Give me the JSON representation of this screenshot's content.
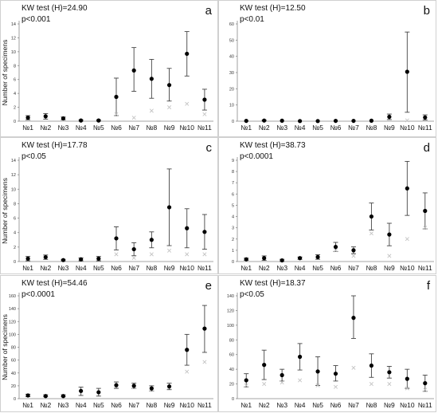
{
  "chart_data": [
    {
      "type": "scatter",
      "panel_label": "a",
      "stat_text": "KW test (H)=24.90",
      "p_text": "p<0.001",
      "ylabel": "Number of specimens",
      "ylim": [
        0,
        14
      ],
      "yticks": [
        0,
        2,
        4,
        6,
        8,
        10,
        12,
        14
      ],
      "categories": [
        "№1",
        "№2",
        "№3",
        "№4",
        "№5",
        "№6",
        "№7",
        "№8",
        "№9",
        "№10",
        "№11"
      ],
      "mean": [
        0.5,
        0.7,
        0.4,
        0.1,
        0.1,
        3.5,
        7.3,
        6.1,
        5.2,
        9.7,
        3.1
      ],
      "err_low": [
        0.2,
        0.3,
        0.2,
        0.0,
        0.0,
        0.8,
        4.3,
        3.3,
        2.9,
        6.5,
        1.6
      ],
      "err_high": [
        0.8,
        1.1,
        0.6,
        0.2,
        0.2,
        6.2,
        10.6,
        8.9,
        7.6,
        12.9,
        4.6
      ],
      "median": [
        null,
        null,
        null,
        null,
        null,
        1.0,
        0.5,
        1.5,
        2.0,
        2.5,
        1.0
      ]
    },
    {
      "type": "scatter",
      "panel_label": "b",
      "stat_text": "KW test (H)=12.50",
      "p_text": "p<0.01",
      "ylabel": "",
      "ylim": [
        0,
        60
      ],
      "yticks": [
        0,
        10,
        20,
        30,
        40,
        50,
        60
      ],
      "categories": [
        "№1",
        "№2",
        "№3",
        "№4",
        "№5",
        "№6",
        "№7",
        "№8",
        "№9",
        "№10",
        "№11"
      ],
      "mean": [
        0.2,
        0.4,
        0.3,
        0.1,
        0.1,
        0.2,
        0.2,
        0.3,
        2.7,
        30.5,
        2.3
      ],
      "err_low": [
        0.0,
        0.1,
        0.1,
        0.0,
        0.0,
        0.0,
        0.0,
        0.1,
        1.0,
        5.5,
        0.7
      ],
      "err_high": [
        0.4,
        0.7,
        0.5,
        0.2,
        0.2,
        0.4,
        0.4,
        0.5,
        4.4,
        55.0,
        3.9
      ],
      "median": [
        null,
        null,
        null,
        null,
        null,
        null,
        null,
        null,
        null,
        0.5,
        null
      ]
    },
    {
      "type": "scatter",
      "panel_label": "c",
      "stat_text": "KW test (H)=17.78",
      "p_text": "p<0.05",
      "ylabel": "Number of specimens",
      "ylim": [
        0,
        14
      ],
      "yticks": [
        0,
        2,
        4,
        6,
        8,
        10,
        12,
        14
      ],
      "categories": [
        "№1",
        "№2",
        "№3",
        "№4",
        "№5",
        "№6",
        "№7",
        "№8",
        "№9",
        "№10",
        "№11"
      ],
      "mean": [
        0.4,
        0.6,
        0.2,
        0.3,
        0.4,
        3.2,
        1.7,
        3.0,
        7.5,
        4.6,
        4.1
      ],
      "err_low": [
        0.1,
        0.3,
        0.1,
        0.1,
        0.1,
        1.6,
        0.8,
        1.9,
        2.2,
        1.9,
        1.7
      ],
      "err_high": [
        0.7,
        0.9,
        0.3,
        0.5,
        0.7,
        4.8,
        2.6,
        4.1,
        12.8,
        7.3,
        6.5
      ],
      "median": [
        null,
        null,
        null,
        null,
        null,
        1.0,
        0.5,
        1.0,
        1.5,
        1.0,
        1.0
      ]
    },
    {
      "type": "scatter",
      "panel_label": "d",
      "stat_text": "KW test (H)=38.73",
      "p_text": "p<0.0001",
      "ylabel": "",
      "ylim": [
        0,
        9
      ],
      "yticks": [
        0,
        1,
        2,
        3,
        4,
        5,
        6,
        7,
        8,
        9
      ],
      "categories": [
        "№1",
        "№2",
        "№3",
        "№4",
        "№5",
        "№6",
        "№7",
        "№8",
        "№9",
        "№10",
        "№11"
      ],
      "mean": [
        0.2,
        0.3,
        0.1,
        0.3,
        0.4,
        1.3,
        1.0,
        4.0,
        2.4,
        6.5,
        4.5
      ],
      "err_low": [
        0.1,
        0.1,
        0.0,
        0.2,
        0.2,
        0.9,
        0.7,
        2.8,
        1.4,
        4.1,
        2.9
      ],
      "err_high": [
        0.3,
        0.5,
        0.2,
        0.4,
        0.6,
        1.7,
        1.3,
        5.2,
        3.4,
        8.9,
        6.1
      ],
      "median": [
        null,
        null,
        null,
        null,
        null,
        1.0,
        0.5,
        2.5,
        0.5,
        2.0,
        3.0
      ]
    },
    {
      "type": "scatter",
      "panel_label": "e",
      "stat_text": "KW test (H)=54.46",
      "p_text": "p<0.0001",
      "ylabel": "Number of specimens",
      "ylim": [
        0,
        160
      ],
      "yticks": [
        0,
        20,
        40,
        60,
        80,
        100,
        120,
        140,
        160
      ],
      "categories": [
        "№1",
        "№2",
        "№3",
        "№4",
        "№5",
        "№6",
        "№7",
        "№8",
        "№9",
        "№10",
        "№11"
      ],
      "mean": [
        5,
        4,
        4,
        12,
        10,
        21,
        20,
        16,
        19,
        76,
        109
      ],
      "err_low": [
        3,
        3,
        3,
        5,
        4,
        16,
        16,
        12,
        14,
        52,
        72
      ],
      "err_high": [
        7,
        6,
        6,
        18,
        16,
        26,
        24,
        20,
        24,
        100,
        145
      ],
      "median": [
        null,
        null,
        null,
        null,
        null,
        20,
        18,
        14,
        18,
        42,
        57
      ]
    },
    {
      "type": "scatter",
      "panel_label": "f",
      "stat_text": "KW test (H)=18.37",
      "p_text": "p<0.05",
      "ylabel": "",
      "ylim": [
        0,
        140
      ],
      "yticks": [
        0,
        20,
        40,
        60,
        80,
        100,
        120,
        140
      ],
      "categories": [
        "№1",
        "№2",
        "№3",
        "№4",
        "№5",
        "№6",
        "№7",
        "№8",
        "№9",
        "№10",
        "№11"
      ],
      "mean": [
        25,
        46,
        32,
        57,
        37,
        34,
        110,
        45,
        36,
        27,
        21
      ],
      "err_low": [
        16,
        26,
        24,
        39,
        18,
        24,
        82,
        29,
        28,
        14,
        10
      ],
      "err_high": [
        34,
        66,
        40,
        75,
        57,
        45,
        140,
        61,
        44,
        40,
        32
      ],
      "median": [
        18,
        20,
        22,
        25,
        18,
        16,
        42,
        20,
        20,
        14,
        12
      ]
    }
  ]
}
